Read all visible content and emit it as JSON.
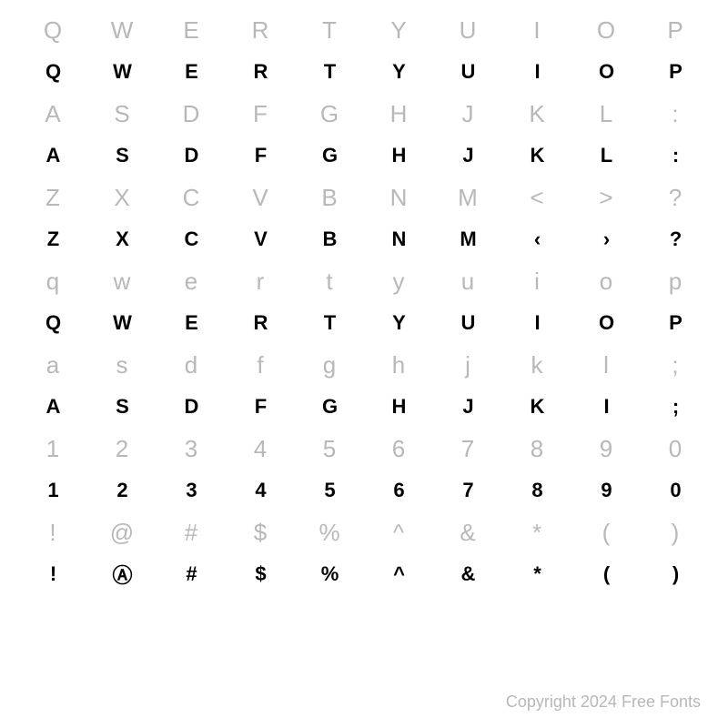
{
  "rows": [
    {
      "type": "ref",
      "cells": [
        "Q",
        "W",
        "E",
        "R",
        "T",
        "Y",
        "U",
        "I",
        "O",
        "P"
      ]
    },
    {
      "type": "glyph",
      "cells": [
        "Q",
        "W",
        "E",
        "R",
        "T",
        "Y",
        "U",
        "I",
        "O",
        "P"
      ]
    },
    {
      "type": "ref",
      "cells": [
        "A",
        "S",
        "D",
        "F",
        "G",
        "H",
        "J",
        "K",
        "L",
        ":"
      ]
    },
    {
      "type": "glyph",
      "cells": [
        "A",
        "S",
        "D",
        "F",
        "G",
        "H",
        "J",
        "K",
        "L",
        ":"
      ]
    },
    {
      "type": "ref",
      "cells": [
        "Z",
        "X",
        "C",
        "V",
        "B",
        "N",
        "M",
        "<",
        ">",
        "?"
      ]
    },
    {
      "type": "glyph",
      "cells": [
        "Z",
        "X",
        "C",
        "V",
        "B",
        "N",
        "M",
        "‹",
        "›",
        "?"
      ]
    },
    {
      "type": "ref",
      "cells": [
        "q",
        "w",
        "e",
        "r",
        "t",
        "y",
        "u",
        "i",
        "o",
        "p"
      ]
    },
    {
      "type": "glyph",
      "cells": [
        "Q",
        "W",
        "E",
        "R",
        "T",
        "Y",
        "U",
        "I",
        "O",
        "P"
      ]
    },
    {
      "type": "ref",
      "cells": [
        "a",
        "s",
        "d",
        "f",
        "g",
        "h",
        "j",
        "k",
        "l",
        ";"
      ]
    },
    {
      "type": "glyph",
      "cells": [
        "A",
        "S",
        "D",
        "F",
        "G",
        "H",
        "J",
        "K",
        "I",
        ";"
      ]
    },
    {
      "type": "ref",
      "cells": [
        "1",
        "2",
        "3",
        "4",
        "5",
        "6",
        "7",
        "8",
        "9",
        "0"
      ]
    },
    {
      "type": "glyph",
      "cells": [
        "1",
        "2",
        "3",
        "4",
        "5",
        "6",
        "7",
        "8",
        "9",
        "0"
      ]
    },
    {
      "type": "ref",
      "cells": [
        "!",
        "@",
        "#",
        "$",
        "%",
        "^",
        "&",
        "*",
        "(",
        ")"
      ]
    },
    {
      "type": "glyph",
      "cells": [
        "!",
        "Ⓐ",
        "#",
        "$",
        "%",
        "^",
        "&",
        "*",
        "(",
        ")"
      ]
    }
  ],
  "copyright": "Copyright 2024 Free Fonts",
  "colors": {
    "ref": "#b8b8b8",
    "glyph": "#000000",
    "background": "#ffffff"
  },
  "font_sizes": {
    "ref": 26,
    "glyph": 22,
    "copyright": 18
  }
}
